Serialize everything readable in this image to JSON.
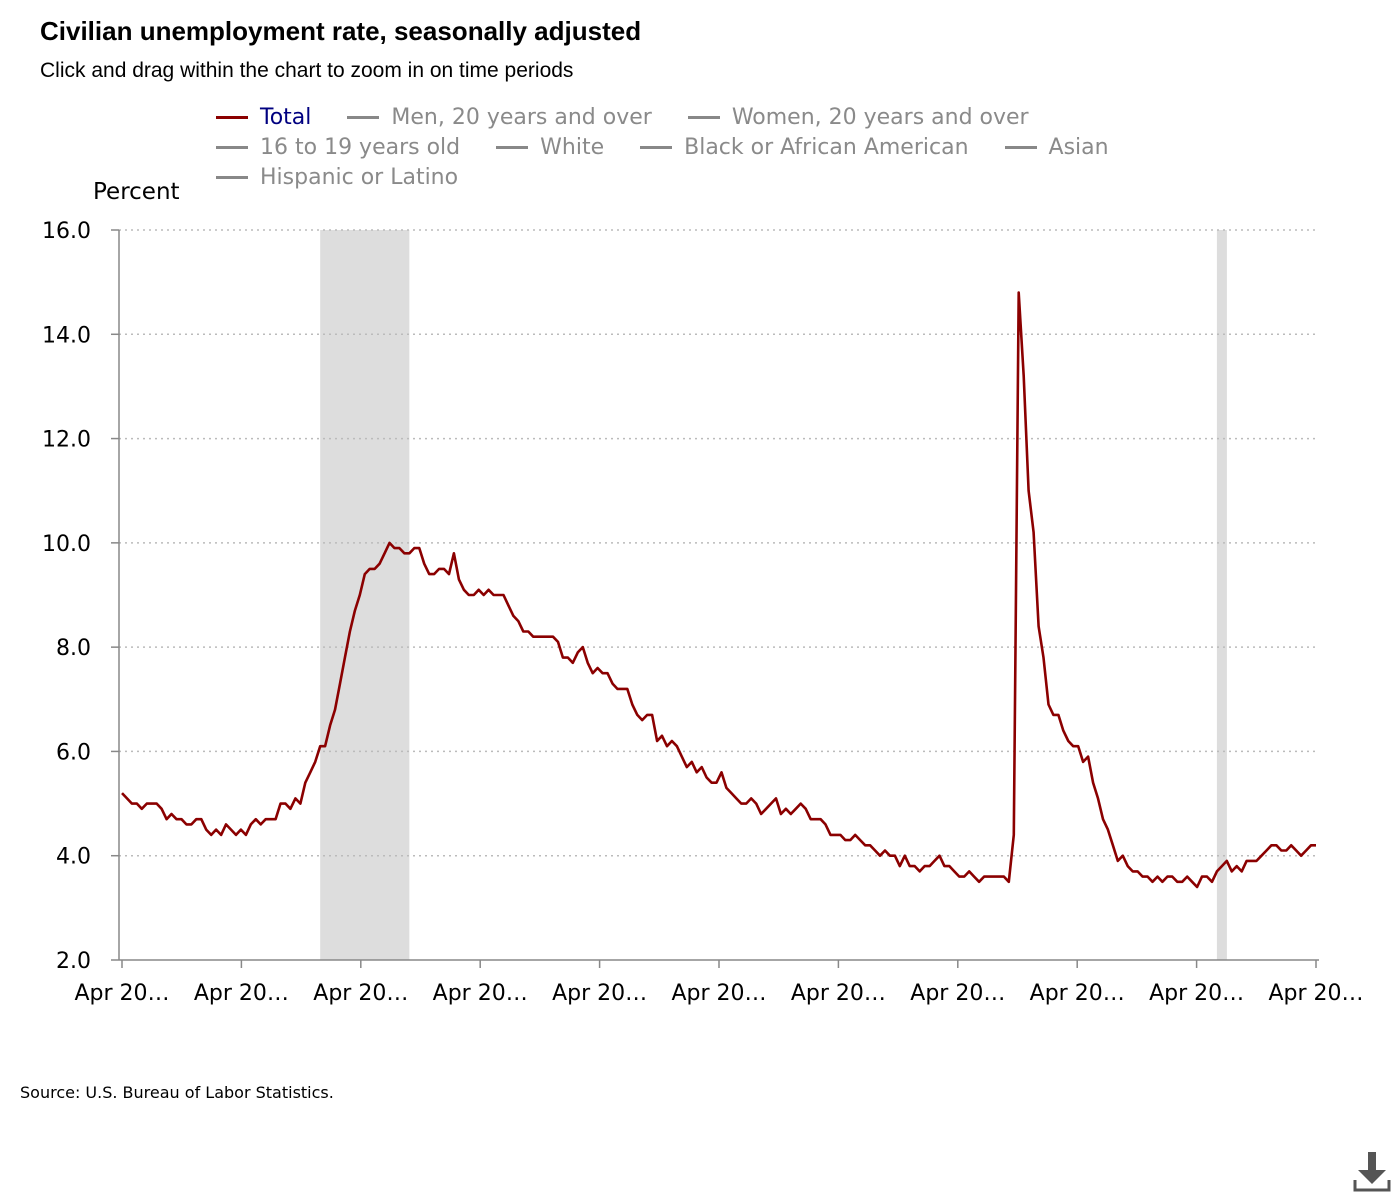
{
  "header": {
    "title": "Civilian unemployment rate, seasonally adjusted",
    "subtitle": "Click and drag within the chart to zoom in on time periods"
  },
  "legend": {
    "rows": [
      [
        {
          "label": "Total",
          "active": true
        },
        {
          "label": "Men, 20 years and over",
          "active": false
        },
        {
          "label": "Women, 20 years and over",
          "active": false
        }
      ],
      [
        {
          "label": "16 to 19 years old",
          "active": false
        },
        {
          "label": "White",
          "active": false
        },
        {
          "label": "Black or African American",
          "active": false
        },
        {
          "label": "Asian",
          "active": false
        }
      ],
      [
        {
          "label": "Hispanic or Latino",
          "active": false
        }
      ]
    ]
  },
  "colors": {
    "series": "#8b0000",
    "legend_active_text": "#000080",
    "legend_inactive": "#888888",
    "recession_band": "#dddddd",
    "grid": "#bbbbbb"
  },
  "footer": {
    "source": "Source: U.S. Bureau of Labor Statistics."
  },
  "download_icon": "download-icon",
  "chart_data": {
    "type": "line",
    "ylabel": "Percent",
    "ylim": [
      2.0,
      16.0
    ],
    "yticks": [
      "2.0",
      "4.0",
      "6.0",
      "8.0",
      "10.0",
      "12.0",
      "14.0",
      "16.0"
    ],
    "xticks": [
      "Apr 20…",
      "Apr 20…",
      "Apr 20…",
      "Apr 20…",
      "Apr 20…",
      "Apr 20…",
      "Apr 20…",
      "Apr 20…",
      "Apr 20…",
      "Apr 20…",
      "Apr 20…"
    ],
    "grid": true,
    "legend_position": "top",
    "shaded_periods": [
      {
        "start_index": 40,
        "end_index": 58
      },
      {
        "start_index": 221,
        "end_index": 223
      }
    ],
    "series": [
      {
        "name": "Total",
        "values": [
          5.2,
          5.1,
          5.0,
          5.0,
          4.9,
          5.0,
          5.0,
          5.0,
          4.9,
          4.7,
          4.8,
          4.7,
          4.7,
          4.6,
          4.6,
          4.7,
          4.7,
          4.5,
          4.4,
          4.5,
          4.4,
          4.6,
          4.5,
          4.4,
          4.5,
          4.4,
          4.6,
          4.7,
          4.6,
          4.7,
          4.7,
          4.7,
          5.0,
          5.0,
          4.9,
          5.1,
          5.0,
          5.4,
          5.6,
          5.8,
          6.1,
          6.1,
          6.5,
          6.8,
          7.3,
          7.8,
          8.3,
          8.7,
          9.0,
          9.4,
          9.5,
          9.5,
          9.6,
          9.8,
          10.0,
          9.9,
          9.9,
          9.8,
          9.8,
          9.9,
          9.9,
          9.6,
          9.4,
          9.4,
          9.5,
          9.5,
          9.4,
          9.8,
          9.3,
          9.1,
          9.0,
          9.0,
          9.1,
          9.0,
          9.1,
          9.0,
          9.0,
          9.0,
          8.8,
          8.6,
          8.5,
          8.3,
          8.3,
          8.2,
          8.2,
          8.2,
          8.2,
          8.2,
          8.1,
          7.8,
          7.8,
          7.7,
          7.9,
          8.0,
          7.7,
          7.5,
          7.6,
          7.5,
          7.5,
          7.3,
          7.2,
          7.2,
          7.2,
          6.9,
          6.7,
          6.6,
          6.7,
          6.7,
          6.2,
          6.3,
          6.1,
          6.2,
          6.1,
          5.9,
          5.7,
          5.8,
          5.6,
          5.7,
          5.5,
          5.4,
          5.4,
          5.6,
          5.3,
          5.2,
          5.1,
          5.0,
          5.0,
          5.1,
          5.0,
          4.8,
          4.9,
          5.0,
          5.1,
          4.8,
          4.9,
          4.8,
          4.9,
          5.0,
          4.9,
          4.7,
          4.7,
          4.7,
          4.6,
          4.4,
          4.4,
          4.4,
          4.3,
          4.3,
          4.4,
          4.3,
          4.2,
          4.2,
          4.1,
          4.0,
          4.1,
          4.0,
          4.0,
          3.8,
          4.0,
          3.8,
          3.8,
          3.7,
          3.8,
          3.8,
          3.9,
          4.0,
          3.8,
          3.8,
          3.7,
          3.6,
          3.6,
          3.7,
          3.6,
          3.5,
          3.6,
          3.6,
          3.6,
          3.6,
          3.6,
          3.5,
          4.4,
          14.8,
          13.2,
          11.0,
          10.2,
          8.4,
          7.8,
          6.9,
          6.7,
          6.7,
          6.4,
          6.2,
          6.1,
          6.1,
          5.8,
          5.9,
          5.4,
          5.1,
          4.7,
          4.5,
          4.2,
          3.9,
          4.0,
          3.8,
          3.7,
          3.7,
          3.6,
          3.6,
          3.5,
          3.6,
          3.5,
          3.6,
          3.6,
          3.5,
          3.5,
          3.6,
          3.5,
          3.4,
          3.6,
          3.6,
          3.5,
          3.7,
          3.8,
          3.9,
          3.7,
          3.8,
          3.7,
          3.9,
          3.9,
          3.9,
          4.0,
          4.1,
          4.2,
          4.2,
          4.1,
          4.1,
          4.2,
          4.1,
          4.0,
          4.1,
          4.2,
          4.2
        ]
      }
    ]
  }
}
